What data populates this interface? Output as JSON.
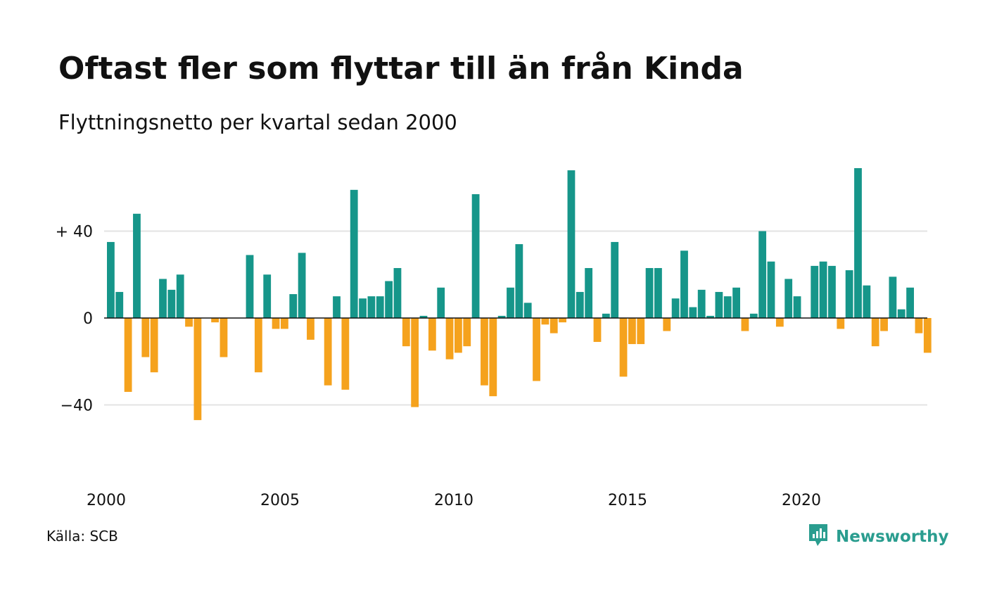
{
  "title": "Oftast fler som flyttar till än från Kinda",
  "subtitle": "Flyttningsnetto per kvartal sedan 2000",
  "source": "Källa: SCB",
  "brand": {
    "name": "Newsworthy",
    "icon": "newsworthy-logo-icon",
    "color": "#2a9d8f"
  },
  "colors": {
    "positive": "#16968a",
    "negative": "#f5a21d",
    "grid": "#e3e3e3",
    "zero_line": "#111111"
  },
  "chart_data": {
    "type": "bar",
    "title": "Oftast fler som flyttar till än från Kinda",
    "subtitle": "Flyttningsnetto per kvartal sedan 2000",
    "xlabel": "",
    "ylabel": "",
    "ylim": [
      -75,
      75
    ],
    "grid": true,
    "yticks": [
      {
        "value": 40,
        "label": "+ 40"
      },
      {
        "value": 0,
        "label": "0"
      },
      {
        "value": -40,
        "label": "−40"
      }
    ],
    "xticks": [
      "2000",
      "2005",
      "2010",
      "2015",
      "2020"
    ],
    "start_year": 2000,
    "categories": [
      "2000K1",
      "2000K2",
      "2000K3",
      "2000K4",
      "2001K1",
      "2001K2",
      "2001K3",
      "2001K4",
      "2002K1",
      "2002K2",
      "2002K3",
      "2002K4",
      "2003K1",
      "2003K2",
      "2003K3",
      "2003K4",
      "2004K1",
      "2004K2",
      "2004K3",
      "2004K4",
      "2005K1",
      "2005K2",
      "2005K3",
      "2005K4",
      "2006K1",
      "2006K2",
      "2006K3",
      "2006K4",
      "2007K1",
      "2007K2",
      "2007K3",
      "2007K4",
      "2008K1",
      "2008K2",
      "2008K3",
      "2008K4",
      "2009K1",
      "2009K2",
      "2009K3",
      "2009K4",
      "2010K1",
      "2010K2",
      "2010K3",
      "2010K4",
      "2011K1",
      "2011K2",
      "2011K3",
      "2011K4",
      "2012K1",
      "2012K2",
      "2012K3",
      "2012K4",
      "2013K1",
      "2013K2",
      "2013K3",
      "2013K4",
      "2014K1",
      "2014K2",
      "2014K3",
      "2014K4",
      "2015K1",
      "2015K2",
      "2015K3",
      "2015K4",
      "2016K1",
      "2016K2",
      "2016K3",
      "2016K4",
      "2017K1",
      "2017K2",
      "2017K3",
      "2017K4",
      "2018K1",
      "2018K2",
      "2018K3",
      "2018K4",
      "2019K1",
      "2019K2",
      "2019K3",
      "2019K4",
      "2020K1",
      "2020K2",
      "2020K3",
      "2020K4",
      "2021K1",
      "2021K2",
      "2021K3",
      "2021K4",
      "2022K1",
      "2022K2",
      "2022K3",
      "2022K4",
      "2023K1",
      "2023K2",
      "2023K3",
      "2023K4"
    ],
    "values": [
      35,
      12,
      -34,
      48,
      -18,
      -25,
      18,
      13,
      20,
      -4,
      -47,
      0,
      -2,
      -18,
      0,
      0,
      29,
      -25,
      20,
      -5,
      -5,
      11,
      30,
      -10,
      0,
      -31,
      10,
      -33,
      59,
      9,
      10,
      10,
      17,
      23,
      -13,
      -41,
      1,
      -15,
      14,
      -19,
      -16,
      -13,
      57,
      -31,
      -36,
      1,
      14,
      34,
      7,
      -29,
      -3,
      -7,
      -2,
      68,
      12,
      23,
      -11,
      2,
      35,
      -27,
      -12,
      -12,
      23,
      23,
      -6,
      9,
      31,
      5,
      13,
      1,
      12,
      10,
      14,
      -6,
      2,
      40,
      26,
      -4,
      18,
      10,
      0,
      24,
      26,
      24,
      -5,
      22,
      69,
      15,
      -13,
      -6,
      19,
      4,
      14,
      -7,
      -16,
      0
    ]
  }
}
